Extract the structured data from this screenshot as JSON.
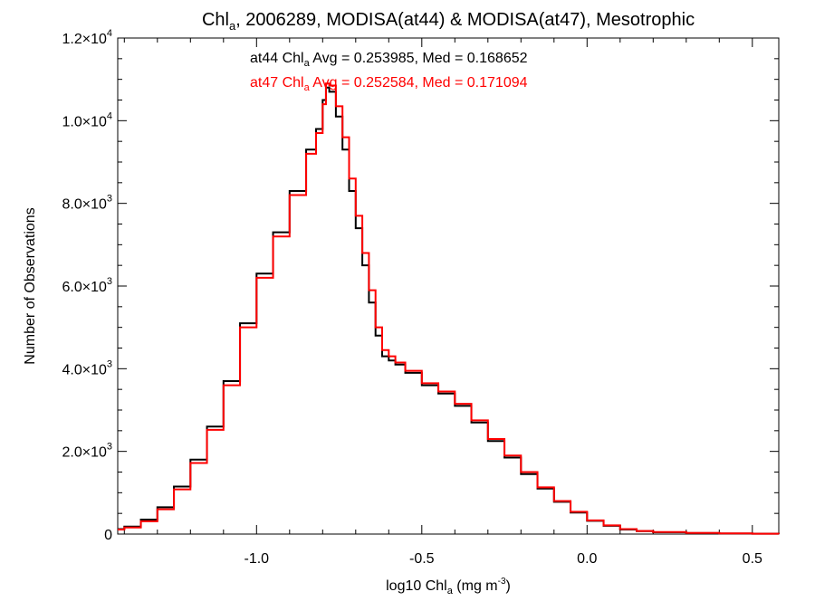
{
  "chart_data": {
    "type": "line",
    "step": true,
    "title": {
      "pre": "Chl",
      "sub": "a",
      "post": ", 2006289, MODISA(at44) & MODISA(at47), Mesotrophic"
    },
    "xlabel": {
      "pre": "log10 Chl",
      "sub": "a",
      "post": " (mg m",
      "sup": "-3",
      "tail": ")"
    },
    "ylabel": "Number of Observations",
    "xlim": [
      -1.42,
      0.58
    ],
    "ylim": [
      0,
      12000
    ],
    "x_ticks": [
      {
        "value": -1.0,
        "label": "-1.0"
      },
      {
        "value": -0.5,
        "label": "-0.5"
      },
      {
        "value": 0.0,
        "label": "0.0"
      },
      {
        "value": 0.5,
        "label": "0.5"
      }
    ],
    "y_ticks": [
      {
        "value": 0,
        "mantissa": "0",
        "exp": ""
      },
      {
        "value": 2000,
        "mantissa": "2.0×10",
        "exp": "3"
      },
      {
        "value": 4000,
        "mantissa": "4.0×10",
        "exp": "3"
      },
      {
        "value": 6000,
        "mantissa": "6.0×10",
        "exp": "3"
      },
      {
        "value": 8000,
        "mantissa": "8.0×10",
        "exp": "3"
      },
      {
        "value": 10000,
        "mantissa": "1.0×10",
        "exp": "4"
      },
      {
        "value": 12000,
        "mantissa": "1.2×10",
        "exp": "4"
      }
    ],
    "annotations": [
      {
        "pre": "at44 Chl",
        "sub": "a",
        "post": " Avg = 0.253985, Med = 0.168652",
        "color": "#000000"
      },
      {
        "pre": "at47 Chl",
        "sub": "a",
        "post": " Avg = 0.252584, Med = 0.171094",
        "color": "#ff0000"
      }
    ],
    "series": [
      {
        "color": "#000000",
        "x": [
          -1.42,
          -1.4,
          -1.35,
          -1.3,
          -1.25,
          -1.2,
          -1.15,
          -1.1,
          -1.05,
          -1.0,
          -0.95,
          -0.9,
          -0.85,
          -0.82,
          -0.8,
          -0.79,
          -0.78,
          -0.76,
          -0.74,
          -0.72,
          -0.7,
          -0.68,
          -0.66,
          -0.64,
          -0.62,
          -0.6,
          -0.58,
          -0.55,
          -0.5,
          -0.45,
          -0.4,
          -0.35,
          -0.3,
          -0.25,
          -0.2,
          -0.15,
          -0.1,
          -0.05,
          0.0,
          0.05,
          0.1,
          0.15,
          0.2,
          0.3,
          0.4,
          0.5,
          0.58
        ],
        "y": [
          120,
          180,
          350,
          650,
          1150,
          1800,
          2600,
          3700,
          5100,
          6300,
          7300,
          8300,
          9300,
          9800,
          10500,
          10800,
          10700,
          10100,
          9300,
          8300,
          7400,
          6500,
          5600,
          4800,
          4300,
          4200,
          4100,
          3900,
          3600,
          3400,
          3100,
          2700,
          2250,
          1850,
          1450,
          1100,
          780,
          520,
          320,
          200,
          110,
          70,
          45,
          25,
          15,
          8,
          5
        ]
      },
      {
        "color": "#ff0000",
        "x": [
          -1.42,
          -1.4,
          -1.35,
          -1.3,
          -1.25,
          -1.2,
          -1.15,
          -1.1,
          -1.05,
          -1.0,
          -0.95,
          -0.9,
          -0.85,
          -0.82,
          -0.8,
          -0.79,
          -0.78,
          -0.76,
          -0.74,
          -0.72,
          -0.7,
          -0.68,
          -0.66,
          -0.64,
          -0.62,
          -0.6,
          -0.58,
          -0.55,
          -0.5,
          -0.45,
          -0.4,
          -0.35,
          -0.3,
          -0.25,
          -0.2,
          -0.15,
          -0.1,
          -0.05,
          0.0,
          0.05,
          0.1,
          0.15,
          0.2,
          0.3,
          0.4,
          0.5,
          0.58
        ],
        "y": [
          110,
          160,
          310,
          600,
          1080,
          1720,
          2520,
          3600,
          5000,
          6200,
          7200,
          8200,
          9200,
          9700,
          10400,
          10900,
          10850,
          10350,
          9600,
          8600,
          7700,
          6800,
          5900,
          5000,
          4450,
          4300,
          4150,
          3950,
          3650,
          3450,
          3150,
          2750,
          2300,
          1900,
          1500,
          1130,
          800,
          540,
          330,
          210,
          120,
          75,
          48,
          28,
          16,
          9,
          5
        ]
      }
    ]
  }
}
